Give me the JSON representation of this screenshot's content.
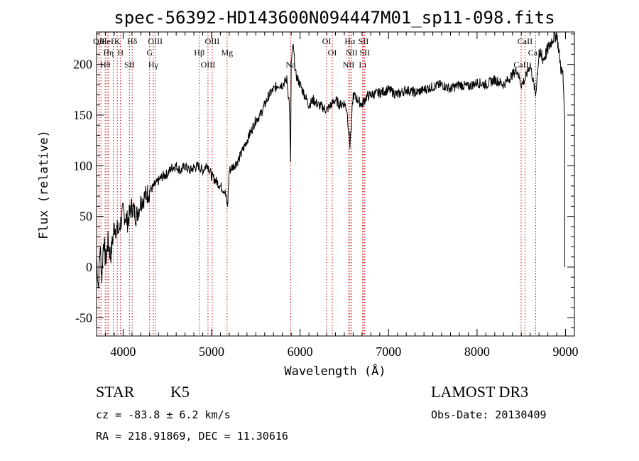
{
  "chart_data": {
    "type": "line",
    "title": "spec-56392-HD143600N094447M01_sp11-098.fits",
    "xlabel": "Wavelength (Å)",
    "ylabel": "Flux (relative)",
    "xlim": [
      3700,
      9100
    ],
    "ylim": [
      -68,
      232
    ],
    "xticks": [
      4000,
      5000,
      6000,
      7000,
      8000,
      9000
    ],
    "yticks": [
      -50,
      0,
      50,
      100,
      150,
      200
    ],
    "grid": false,
    "series": [
      {
        "x": [
          3700,
          3720,
          3740,
          3760,
          3780,
          3800,
          3830,
          3860,
          3900,
          3950,
          4000,
          4050,
          4100,
          4150,
          4200,
          4250,
          4300,
          4350,
          4400,
          4450,
          4500,
          4550,
          4600,
          4650,
          4700,
          4750,
          4800,
          4850,
          4900,
          4950,
          5000,
          5050,
          5100,
          5150,
          5180,
          5200,
          5250,
          5300,
          5350,
          5400,
          5450,
          5500,
          5550,
          5600,
          5650,
          5700,
          5750,
          5800,
          5850,
          5880,
          5892,
          5900,
          5920,
          5950,
          6000,
          6050,
          6100,
          6150,
          6200,
          6250,
          6300,
          6350,
          6400,
          6450,
          6500,
          6530,
          6563,
          6600,
          6650,
          6700,
          6750,
          6800,
          6900,
          7000,
          7100,
          7200,
          7300,
          7400,
          7500,
          7600,
          7700,
          7800,
          7900,
          8000,
          8100,
          8200,
          8300,
          8400,
          8450,
          8498,
          8542,
          8600,
          8662,
          8700,
          8750,
          8800,
          8850,
          8900,
          8950,
          8970,
          8990
        ],
        "y": [
          10,
          -20,
          20,
          -10,
          30,
          5,
          25,
          10,
          40,
          35,
          55,
          45,
          60,
          50,
          65,
          70,
          75,
          80,
          85,
          90,
          92,
          98,
          100,
          95,
          100,
          95,
          98,
          100,
          95,
          102,
          90,
          85,
          80,
          75,
          60,
          95,
          100,
          105,
          115,
          125,
          135,
          145,
          150,
          160,
          170,
          175,
          180,
          180,
          185,
          160,
          100,
          200,
          220,
          190,
          180,
          170,
          160,
          165,
          160,
          158,
          155,
          160,
          165,
          160,
          162,
          155,
          120,
          170,
          165,
          160,
          168,
          170,
          172,
          175,
          170,
          175,
          172,
          175,
          178,
          180,
          176,
          180,
          178,
          182,
          180,
          185,
          180,
          190,
          195,
          180,
          185,
          200,
          170,
          210,
          205,
          215,
          225,
          230,
          195,
          190,
          150
        ],
        "name": ""
      }
    ],
    "line_markers": [
      {
        "x": 3727,
        "label": "OII"
      },
      {
        "x": 3750,
        "label": ""
      },
      {
        "x": 3798,
        "label": "Hθ"
      },
      {
        "x": 3820,
        "label": "HeI"
      },
      {
        "x": 3835,
        "label": "Hη"
      },
      {
        "x": 3889,
        "label": ""
      },
      {
        "x": 3934,
        "label": "K"
      },
      {
        "x": 3970,
        "label": "H"
      },
      {
        "x": 4072,
        "label": "SII"
      },
      {
        "x": 4102,
        "label": "Hδ"
      },
      {
        "x": 4300,
        "label": "G"
      },
      {
        "x": 4341,
        "label": "Hγ"
      },
      {
        "x": 4363,
        "label": "OIII"
      },
      {
        "x": 4861,
        "label": "Hβ"
      },
      {
        "x": 4959,
        "label": "OIII"
      },
      {
        "x": 5007,
        "label": "OIII"
      },
      {
        "x": 5175,
        "label": "Mg"
      },
      {
        "x": 5893,
        "label": "Na"
      },
      {
        "x": 6300,
        "label": "OI"
      },
      {
        "x": 6364,
        "label": "OI"
      },
      {
        "x": 6548,
        "label": "NII"
      },
      {
        "x": 6563,
        "label": "Hα"
      },
      {
        "x": 6583,
        "label": "NII"
      },
      {
        "x": 6707,
        "label": "Li"
      },
      {
        "x": 6716,
        "label": "SII"
      },
      {
        "x": 6731,
        "label": "SII"
      },
      {
        "x": 8498,
        "label": "CaII"
      },
      {
        "x": 8542,
        "label": "CaII"
      },
      {
        "x": 8662,
        "label": "CaII"
      }
    ],
    "line_color": "#cc0000"
  },
  "footer": {
    "class_label": "STAR",
    "subclass_label": "K5",
    "survey_label": "LAMOST DR3",
    "cz_text": "cz = -83.8 ± 6.2 km/s",
    "obs_date_text": "Obs-Date: 20130409",
    "coords_text": "RA = 218.91869, DEC =  11.30616"
  }
}
